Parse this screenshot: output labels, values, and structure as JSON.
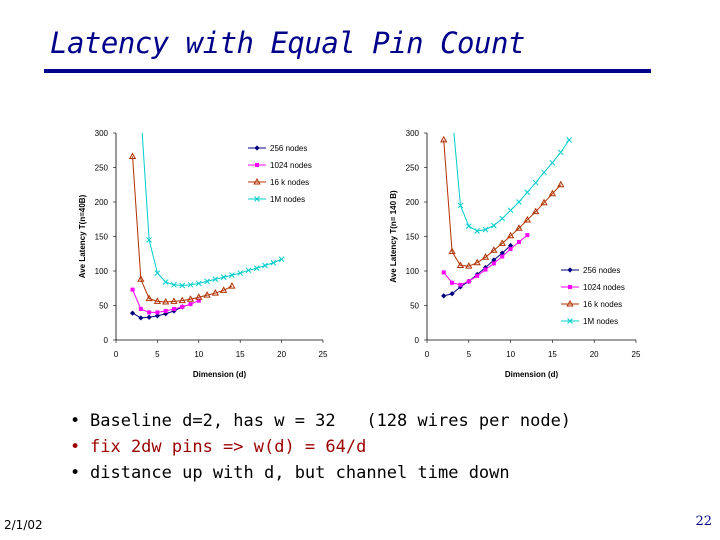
{
  "slide": {
    "title": "Latency with Equal Pin Count",
    "bullets": [
      {
        "marker": "•",
        "text": "Baseline d=2, has w = 32   (128 wires per node)"
      },
      {
        "marker": "•",
        "text": "fix 2dw pins => w(d) = 64/d"
      },
      {
        "marker": "•",
        "text": "distance up with d, but channel time down"
      }
    ],
    "date": "2/1/02",
    "page_number": "22"
  },
  "chart_data": [
    {
      "type": "line",
      "title": "",
      "xlabel": "Dimension (d)",
      "ylabel": "Ave Latency T(n=40B)",
      "xlim": [
        0,
        25
      ],
      "ylim": [
        0,
        300
      ],
      "xticks": [
        0,
        5,
        10,
        15,
        20,
        25
      ],
      "yticks": [
        0,
        50,
        100,
        150,
        200,
        250,
        300
      ],
      "legend_position": "top-right",
      "series": [
        {
          "name": "256 nodes",
          "color": "#000080",
          "marker": "diamond",
          "x": [
            2,
            3,
            4,
            5,
            6,
            7,
            8
          ],
          "y": [
            39,
            32,
            33,
            35,
            38,
            42,
            48
          ]
        },
        {
          "name": "1024 nodes",
          "color": "#ff00ff",
          "marker": "square",
          "x": [
            2,
            3,
            4,
            5,
            6,
            7,
            8,
            9,
            10
          ],
          "y": [
            73,
            45,
            40,
            40,
            42,
            45,
            48,
            52,
            57
          ]
        },
        {
          "name": "16 k nodes",
          "color": "#b03000",
          "marker": "triangle",
          "x": [
            2,
            3,
            4,
            5,
            6,
            7,
            8,
            9,
            10,
            11,
            12,
            13,
            14
          ],
          "y": [
            266,
            88,
            60,
            56,
            55,
            56,
            57,
            59,
            62,
            65,
            68,
            72,
            78
          ]
        },
        {
          "name": "1M nodes",
          "color": "#00cccc",
          "marker": "x",
          "x": [
            3,
            4,
            5,
            6,
            7,
            8,
            9,
            10,
            11,
            12,
            13,
            14,
            15,
            16,
            17,
            18,
            19,
            20
          ],
          "y": [
            330,
            145,
            97,
            84,
            80,
            79,
            80,
            82,
            85,
            88,
            91,
            94,
            97,
            101,
            104,
            108,
            112,
            117
          ]
        }
      ]
    },
    {
      "type": "line",
      "title": "",
      "xlabel": "Dimension (d)",
      "ylabel": "Ave Latency T(n= 140 B)",
      "xlim": [
        0,
        25
      ],
      "ylim": [
        0,
        300
      ],
      "xticks": [
        0,
        5,
        10,
        15,
        20,
        25
      ],
      "yticks": [
        0,
        50,
        100,
        150,
        200,
        250,
        300
      ],
      "legend_position": "bottom-right",
      "series": [
        {
          "name": "256 nodes",
          "color": "#000080",
          "marker": "diamond",
          "x": [
            2,
            3,
            4,
            5,
            6,
            7,
            8,
            9,
            10
          ],
          "y": [
            64,
            67,
            77,
            85,
            95,
            105,
            116,
            126,
            137
          ]
        },
        {
          "name": "1024 nodes",
          "color": "#ff00ff",
          "marker": "square",
          "x": [
            2,
            3,
            4,
            5,
            6,
            7,
            8,
            9,
            10,
            11,
            12
          ],
          "y": [
            98,
            83,
            80,
            85,
            93,
            102,
            111,
            121,
            132,
            142,
            152
          ]
        },
        {
          "name": "16 k nodes",
          "color": "#b03000",
          "marker": "triangle",
          "x": [
            2,
            3,
            4,
            5,
            6,
            7,
            8,
            9,
            10,
            11,
            12,
            13,
            14,
            15,
            16
          ],
          "y": [
            290,
            128,
            108,
            107,
            112,
            120,
            130,
            140,
            151,
            162,
            174,
            186,
            199,
            212,
            225
          ]
        },
        {
          "name": "1M nodes",
          "color": "#00cccc",
          "marker": "x",
          "x": [
            3,
            4,
            5,
            6,
            7,
            8,
            9,
            10,
            11,
            12,
            13,
            14,
            15,
            16,
            17
          ],
          "y": [
            330,
            195,
            165,
            158,
            160,
            166,
            176,
            188,
            200,
            214,
            228,
            243,
            257,
            272,
            290
          ]
        }
      ]
    }
  ]
}
